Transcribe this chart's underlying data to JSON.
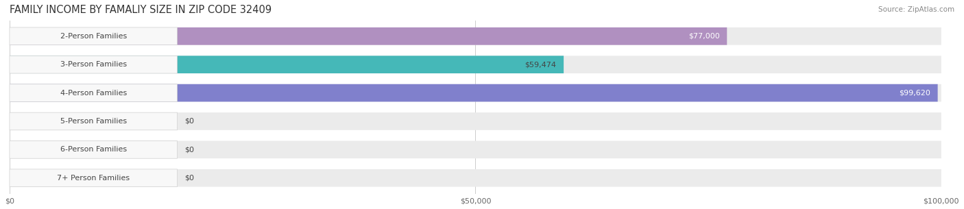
{
  "title": "FAMILY INCOME BY FAMALIY SIZE IN ZIP CODE 32409",
  "source": "Source: ZipAtlas.com",
  "categories": [
    "2-Person Families",
    "3-Person Families",
    "4-Person Families",
    "5-Person Families",
    "6-Person Families",
    "7+ Person Families"
  ],
  "values": [
    77000,
    59474,
    99620,
    0,
    0,
    0
  ],
  "bar_colors": [
    "#b090c0",
    "#45b8b8",
    "#8080cc",
    "#f090a8",
    "#f0b878",
    "#f09090"
  ],
  "label_bg_colors": [
    "#ede0f5",
    "#d0f0f0",
    "#d8d8f0",
    "#fce0ea",
    "#fce8cc",
    "#fce0dc"
  ],
  "value_labels": [
    "$77,000",
    "$59,474",
    "$99,620",
    "$0",
    "$0",
    "$0"
  ],
  "value_label_white": [
    true,
    false,
    true,
    false,
    false,
    false
  ],
  "xlim_max": 100000,
  "xticks": [
    0,
    50000,
    100000
  ],
  "xticklabels": [
    "$0",
    "$50,000",
    "$100,000"
  ],
  "row_bg_color": "#ebebeb",
  "bar_height": 0.62,
  "figsize": [
    14.06,
    3.05
  ],
  "dpi": 100,
  "title_fontsize": 10.5,
  "label_fontsize": 8,
  "value_fontsize": 8
}
